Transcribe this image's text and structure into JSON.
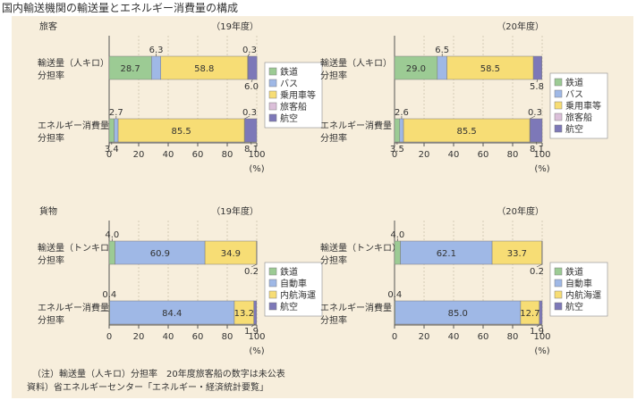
{
  "title": "国内輸送機関の輸送量とエネルギー消費量の構成",
  "colors": {
    "鉄道": "#9ccb94",
    "バス": "#9fb8e6",
    "自動車": "#9fb8e6",
    "乗用車等": "#f7dd75",
    "内航海運": "#f7dd75",
    "旅客船": "#dbbfd9",
    "航空": "#7d78b8"
  },
  "footnote": {
    "note": "（注）輸送量（人キロ）分担率　20年度旅客船の数字は未公表",
    "source": "資料）省エネルギーセンター「エネルギー・経済統計要覧」"
  },
  "chart_data": [
    {
      "type": "bar",
      "orientation": "horizontal",
      "stacked": true,
      "section": "旅客",
      "year_label": "（19年度）",
      "categories": [
        "鉄道",
        "バス",
        "乗用車等",
        "旅客船",
        "航空"
      ],
      "bars": [
        {
          "label": [
            "輸送量（人キロ）",
            "分担率"
          ],
          "values": [
            28.7,
            6.3,
            58.8,
            0.3,
            6.0
          ]
        },
        {
          "label": [
            "エネルギー消費量",
            "分担率"
          ],
          "values": [
            3.4,
            2.7,
            85.5,
            0.3,
            8.1
          ]
        }
      ],
      "xlim": [
        0,
        100
      ],
      "xticks": [
        "0",
        "20",
        "40",
        "60",
        "80",
        "100"
      ],
      "xunit": "(%)",
      "legend": [
        "鉄道",
        "バス",
        "乗用車等",
        "旅客船",
        "航空"
      ]
    },
    {
      "type": "bar",
      "orientation": "horizontal",
      "stacked": true,
      "section": "",
      "year_label": "（20年度）",
      "categories": [
        "鉄道",
        "バス",
        "乗用車等",
        "旅客船",
        "航空"
      ],
      "bars": [
        {
          "label": [
            "輸送量（人キロ）",
            "分担率"
          ],
          "values": [
            29.0,
            6.5,
            58.5,
            null,
            5.8
          ]
        },
        {
          "label": [
            "エネルギー消費量",
            "分担率"
          ],
          "values": [
            3.5,
            2.6,
            85.5,
            0.3,
            8.1
          ]
        }
      ],
      "xlim": [
        0,
        100
      ],
      "xticks": [
        "0",
        "20",
        "40",
        "60",
        "80",
        "100"
      ],
      "xunit": "(%)",
      "legend": [
        "鉄道",
        "バス",
        "乗用車等",
        "旅客船",
        "航空"
      ]
    },
    {
      "type": "bar",
      "orientation": "horizontal",
      "stacked": true,
      "section": "貨物",
      "year_label": "（19年度）",
      "categories": [
        "鉄道",
        "自動車",
        "内航海運",
        "航空"
      ],
      "bars": [
        {
          "label": [
            "輸送量（トンキロ）",
            "分担率"
          ],
          "values": [
            4.0,
            60.9,
            34.9,
            0.2
          ]
        },
        {
          "label": [
            "エネルギー消費量",
            "分担率"
          ],
          "values": [
            0.4,
            84.4,
            13.2,
            1.9
          ]
        }
      ],
      "xlim": [
        0,
        100
      ],
      "xticks": [
        "0",
        "20",
        "40",
        "60",
        "80",
        "100"
      ],
      "xunit": "(%)",
      "legend": [
        "鉄道",
        "自動車",
        "内航海運",
        "航空"
      ]
    },
    {
      "type": "bar",
      "orientation": "horizontal",
      "stacked": true,
      "section": "",
      "year_label": "（20年度）",
      "categories": [
        "鉄道",
        "自動車",
        "内航海運",
        "航空"
      ],
      "bars": [
        {
          "label": [
            "輸送量（トンキロ）",
            "分担率"
          ],
          "values": [
            4.0,
            62.1,
            33.7,
            0.2
          ]
        },
        {
          "label": [
            "エネルギー消費量",
            "分担率"
          ],
          "values": [
            0.4,
            85.0,
            12.7,
            1.9
          ]
        }
      ],
      "xlim": [
        0,
        100
      ],
      "xticks": [
        "0",
        "20",
        "40",
        "60",
        "80",
        "100"
      ],
      "xunit": "(%)",
      "legend": [
        "鉄道",
        "自動車",
        "内航海運",
        "航空"
      ]
    }
  ]
}
